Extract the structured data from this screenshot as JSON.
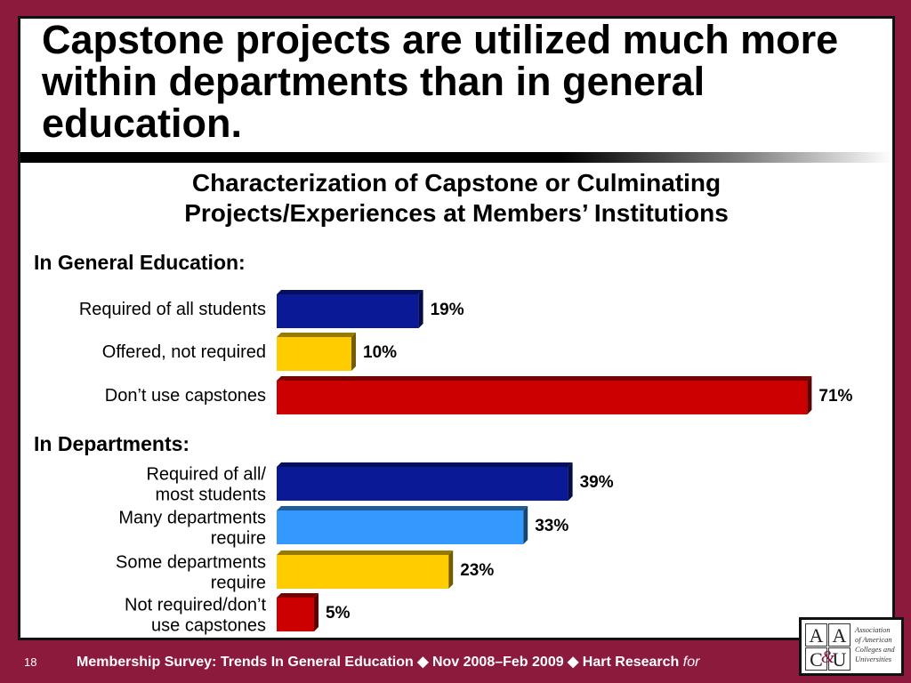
{
  "slide": {
    "title": "Capstone projects are utilized much more within departments than in general education.",
    "subtitle": "Characterization of Capstone or Culminating Projects/Experiences at Members’ Institutions"
  },
  "chart_data": [
    {
      "type": "bar",
      "orientation": "horizontal",
      "title": "In General Education:",
      "categories": [
        "Required of all students",
        "Offered, not required",
        "Don’t use capstones"
      ],
      "values": [
        19,
        10,
        71
      ],
      "value_labels": [
        "19%",
        "10%",
        "71%"
      ],
      "colors": [
        "#0a1a96",
        "#ffcc00",
        "#cc0000"
      ],
      "xlim": [
        0,
        100
      ],
      "grid": false
    },
    {
      "type": "bar",
      "orientation": "horizontal",
      "title": "In Departments:",
      "categories": [
        "Required of all/ most students",
        "Many departments require",
        "Some departments require",
        "Not required/don’t use capstones"
      ],
      "category_lines": [
        [
          "Required of all/",
          "most students"
        ],
        [
          "Many departments",
          "require"
        ],
        [
          "Some departments",
          "require"
        ],
        [
          "Not required/don’t",
          "use capstones"
        ]
      ],
      "values": [
        39,
        33,
        23,
        5
      ],
      "value_labels": [
        "39%",
        "33%",
        "23%",
        "5%"
      ],
      "colors": [
        "#0a1a96",
        "#3399ff",
        "#ffcc00",
        "#cc0000"
      ],
      "xlim": [
        0,
        100
      ],
      "grid": false
    }
  ],
  "footer": {
    "page_number": "18",
    "text": "Membership Survey: Trends In General Education ◆ Nov 2008–Feb 2009 ◆ Hart Research",
    "for_text": "for"
  },
  "logo": {
    "letters": [
      "A",
      "A",
      "C",
      "U"
    ],
    "ampersand": "&",
    "lines": [
      "Association",
      "of American",
      "Colleges and",
      "Universities"
    ]
  }
}
